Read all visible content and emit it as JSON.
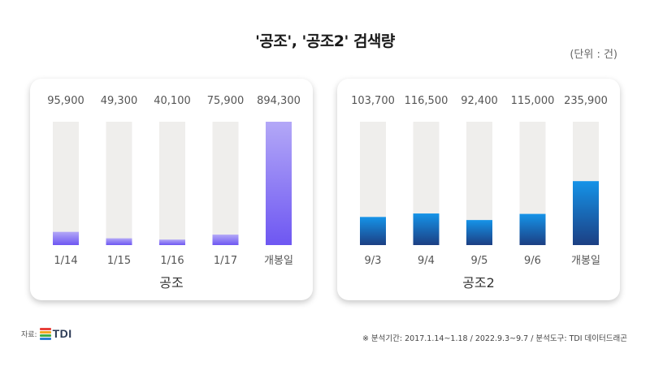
{
  "title": "'공조', '공조2' 검색량",
  "unit": "(단위 : 건)",
  "chart_data": [
    {
      "type": "bar",
      "title": "공조",
      "categories": [
        "1/14",
        "1/15",
        "1/16",
        "1/17",
        "개봉일"
      ],
      "values": [
        95900,
        49300,
        40100,
        75900,
        894300
      ],
      "value_labels": [
        "95,900",
        "49,300",
        "40,100",
        "75,900",
        "894,300"
      ],
      "ylim": [
        0,
        894300
      ],
      "grid": false,
      "colors": {
        "top": "#b3a8f7",
        "bottom": "#6e57f2"
      }
    },
    {
      "type": "bar",
      "title": "공조2",
      "categories": [
        "9/3",
        "9/4",
        "9/5",
        "9/6",
        "개봉일"
      ],
      "values": [
        103700,
        116500,
        92400,
        115000,
        235900
      ],
      "value_labels": [
        "103,700",
        "116,500",
        "92,400",
        "115,000",
        "235,900"
      ],
      "ylim": [
        0,
        455000
      ],
      "grid": false,
      "colors": {
        "top": "#1593e8",
        "bottom": "#1c3f83"
      }
    }
  ],
  "source": {
    "label": "자료:",
    "logo_text": "TDI",
    "logo_colors": [
      "#e8403a",
      "#f5a623",
      "#3fae49",
      "#2d7fd3"
    ]
  },
  "footnote": "※ 분석기간:  2017.1.14~1.18 / 2022.9.3~9.7  / 분석도구: TDI 데이터드래곤",
  "colors": {
    "track": "#efeeec",
    "label": "#555555"
  }
}
